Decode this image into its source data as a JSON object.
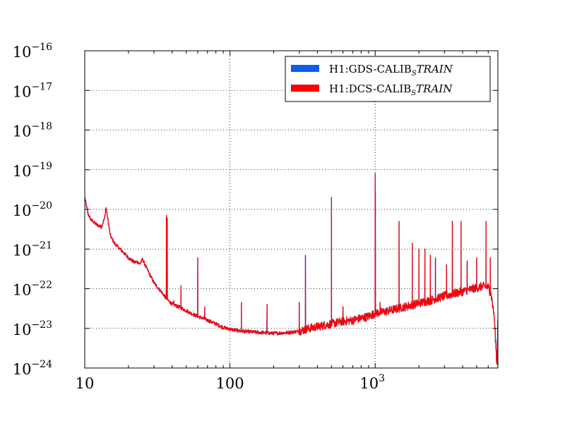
{
  "chart_data": {
    "type": "line",
    "title": "",
    "xlabel": "",
    "ylabel": "",
    "x_scale": "log",
    "y_scale": "log",
    "xlim": [
      10,
      7000
    ],
    "ylim": [
      1e-24,
      1e-16
    ],
    "grid": true,
    "legend_position": "top-right",
    "x_ticks": [
      {
        "value": 10,
        "base": "10",
        "exp": ""
      },
      {
        "value": 100,
        "base": "100",
        "exp": ""
      },
      {
        "value": 1000,
        "base": "10",
        "exp": "3"
      }
    ],
    "y_ticks": [
      {
        "value": 1e-16,
        "base": "10",
        "exp": "−16"
      },
      {
        "value": 1e-17,
        "base": "10",
        "exp": "−17"
      },
      {
        "value": 1e-18,
        "base": "10",
        "exp": "−18"
      },
      {
        "value": 1e-19,
        "base": "10",
        "exp": "−19"
      },
      {
        "value": 1e-20,
        "base": "10",
        "exp": "−20"
      },
      {
        "value": 1e-21,
        "base": "10",
        "exp": "−21"
      },
      {
        "value": 1e-22,
        "base": "10",
        "exp": "−22"
      },
      {
        "value": 1e-23,
        "base": "10",
        "exp": "−23"
      },
      {
        "value": 1e-24,
        "base": "10",
        "exp": "−24"
      }
    ],
    "series": [
      {
        "name_main": "H1:GDS-CALIB",
        "name_sub": "S",
        "name_it": "TRAIN",
        "color": "#0b5fe6",
        "baseline": [
          [
            10,
            2e-20
          ],
          [
            10.5,
            8e-21
          ],
          [
            11,
            5.5e-21
          ],
          [
            12,
            4.2e-21
          ],
          [
            13,
            3.6e-21
          ],
          [
            13.7,
            6e-21
          ],
          [
            14,
            1.1e-20
          ],
          [
            14.4,
            6e-21
          ],
          [
            15,
            2.2e-21
          ],
          [
            16,
            1.4e-21
          ],
          [
            18,
            9e-22
          ],
          [
            20,
            6e-22
          ],
          [
            22,
            4.6e-22
          ],
          [
            23,
            4.8e-22
          ],
          [
            24,
            4.2e-22
          ],
          [
            25,
            5.5e-22
          ],
          [
            26,
            4e-22
          ],
          [
            28,
            2.3e-22
          ],
          [
            30,
            1.4e-22
          ],
          [
            32,
            1.05e-22
          ],
          [
            34,
            8e-23
          ],
          [
            36,
            6e-23
          ],
          [
            38,
            4.8e-23
          ],
          [
            40,
            4.1e-23
          ],
          [
            45,
            3.4e-23
          ],
          [
            50,
            2.8e-23
          ],
          [
            55,
            2.3e-23
          ],
          [
            60,
            2e-23
          ],
          [
            70,
            1.6e-23
          ],
          [
            80,
            1.3e-23
          ],
          [
            90,
            1.05e-23
          ],
          [
            100,
            9.5e-24
          ],
          [
            120,
            8.5e-24
          ],
          [
            150,
            8e-24
          ],
          [
            200,
            7.5e-24
          ],
          [
            250,
            7.8e-24
          ],
          [
            300,
            8.5e-24
          ],
          [
            350,
            1e-23
          ],
          [
            400,
            1.1e-23
          ],
          [
            500,
            1.3e-23
          ],
          [
            600,
            1.5e-23
          ],
          [
            700,
            1.6e-23
          ],
          [
            800,
            1.8e-23
          ],
          [
            900,
            2e-23
          ],
          [
            1000,
            2.4e-23
          ],
          [
            1200,
            2.7e-23
          ],
          [
            1500,
            3.3e-23
          ],
          [
            2000,
            4.3e-23
          ],
          [
            2500,
            5.3e-23
          ],
          [
            3000,
            6.5e-23
          ],
          [
            3500,
            7.5e-23
          ],
          [
            4000,
            8.5e-23
          ],
          [
            4500,
            9.5e-23
          ],
          [
            5000,
            1.05e-22
          ],
          [
            5500,
            1.15e-22
          ],
          [
            6000,
            1.1e-22
          ],
          [
            6300,
            7e-23
          ],
          [
            6600,
            2e-23
          ],
          [
            6800,
            3e-24
          ],
          [
            6900,
            1e-24
          ],
          [
            7000,
            2e-23
          ]
        ],
        "peaks": [
          [
            36.5,
            7e-21
          ],
          [
            37,
            6e-21
          ],
          [
            41,
            5e-23
          ],
          [
            46,
            1.2e-22
          ],
          [
            60,
            6e-22
          ],
          [
            67,
            3.5e-23
          ],
          [
            120,
            4.5e-23
          ],
          [
            180,
            4e-23
          ],
          [
            300,
            4.5e-23
          ],
          [
            331,
            7e-22
          ],
          [
            500,
            2e-20
          ],
          [
            600,
            3.5e-23
          ],
          [
            1000,
            8e-20
          ],
          [
            1003,
            3e-20
          ],
          [
            1080,
            4.5e-23
          ],
          [
            1460,
            5e-21
          ],
          [
            1800,
            1.4e-21
          ],
          [
            2000,
            1e-21
          ],
          [
            2200,
            1e-21
          ],
          [
            2400,
            7e-22
          ],
          [
            2600,
            6e-22
          ],
          [
            3100,
            4e-22
          ],
          [
            3400,
            5e-21
          ],
          [
            3900,
            5e-21
          ],
          [
            4300,
            5e-22
          ],
          [
            5000,
            6e-22
          ],
          [
            5800,
            5e-21
          ],
          [
            6200,
            6e-22
          ]
        ]
      },
      {
        "name_main": "H1:DCS-CALIB",
        "name_sub": "S",
        "name_it": "TRAIN",
        "color": "#ff0000",
        "same_as_series": 0
      }
    ]
  }
}
